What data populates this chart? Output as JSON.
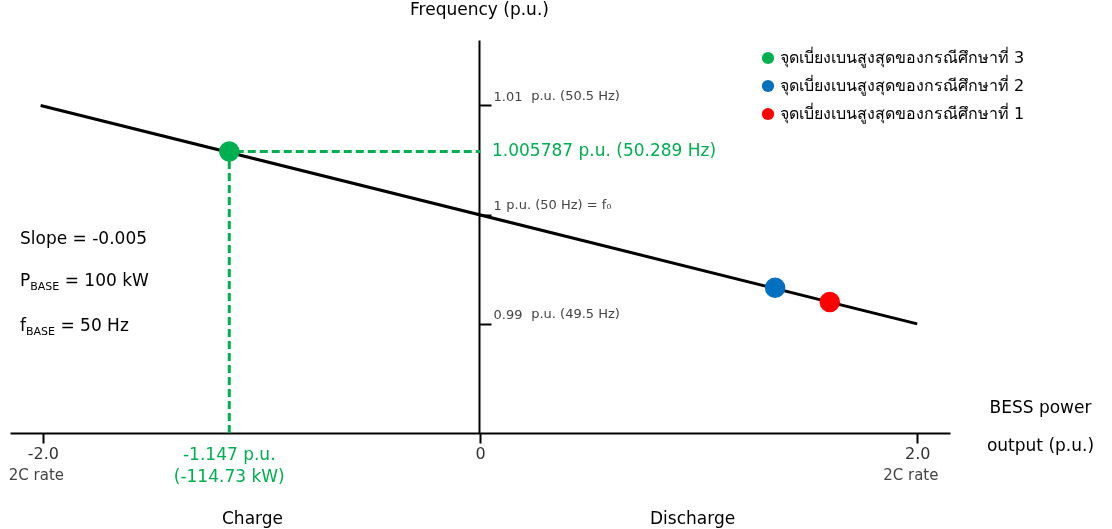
{
  "chart_data": {
    "type": "line",
    "xlabel": "BESS power output (p.u.)",
    "ylabel": "Frequency (p.u.)",
    "xlim": [
      -2.15,
      2.15
    ],
    "xticks": [
      {
        "value": -2,
        "label": "-2.0"
      },
      0,
      {
        "value": 2,
        "label": "2.0"
      }
    ],
    "ylim": [
      0.98,
      1.016
    ],
    "yticks": [
      0.99,
      1,
      1.01
    ],
    "grid": false,
    "legend": "top right",
    "series": [
      {
        "color": "#000000",
        "line_style": "solid",
        "marker": "none",
        "x": [
          -2.01,
          2.0
        ],
        "values": [
          1.01,
          0.99
        ]
      },
      {
        "color": "#00b050",
        "line_style": "dashed",
        "marker": "none",
        "x": [
          -1.147,
          -1.147,
          0
        ],
        "values": [
          0.98,
          1.005787,
          1.005787
        ]
      },
      {
        "type": "scatter",
        "name": "จุดเบี่ยงเบนสูงสุดของกรณีศึกษาที่ 3",
        "color": "#00b050",
        "marker": "circle",
        "x": [
          -1.147
        ],
        "values": [
          1.005787
        ]
      },
      {
        "type": "scatter",
        "name": "จุดเบี่ยงเบนสูงสุดของกรณีศึกษาที่ 2",
        "color": "#0070c0",
        "marker": "circle",
        "x": [
          1.35
        ],
        "values": [
          0.9933
        ]
      },
      {
        "type": "scatter",
        "name": "จุดเบี่ยงเบนสูงสุดของกรณีศึกษาที่ 1",
        "color": "#ff0000",
        "marker": "circle",
        "x": [
          1.6
        ],
        "values": [
          0.992
        ]
      }
    ],
    "annotations": [
      "Slope = -0.005",
      "P$_{BASE}$ = 100 kW",
      "f$_{BASE}$ = 50 Hz",
      "2C rate",
      "2C rate",
      "Charge",
      "Discharge",
      "p.u. (49.5 Hz)",
      "p.u. (50 Hz) = f₀",
      "p.u. (50.5 Hz)",
      {
        "text": "1.005787 p.u. (50.289 Hz)",
        "x": 0,
        "y": 1.005787
      },
      {
        "text": "-1.147 p.u. (-114.73 kW)",
        "x": -1.147,
        "y": 0.98
      }
    ]
  }
}
